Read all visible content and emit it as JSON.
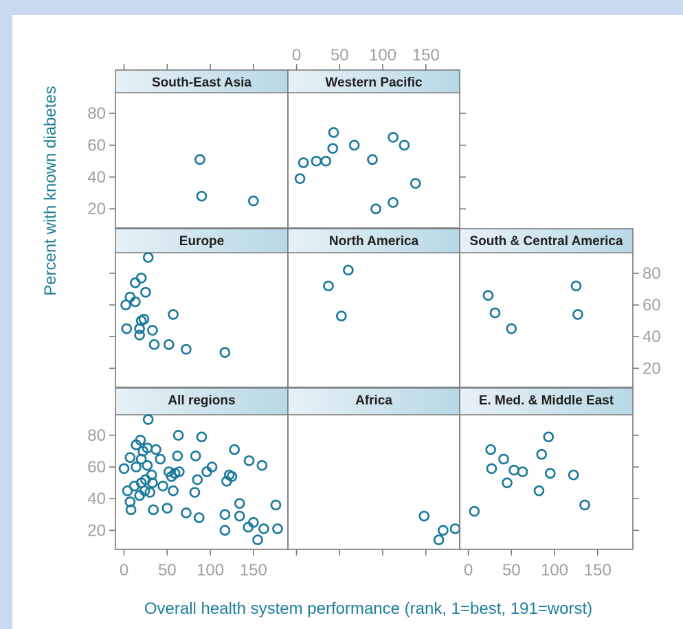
{
  "chart_data": {
    "type": "scatter",
    "xlabel": "Overall health system performance (rank, 1=best, 191=worst)",
    "ylabel": "Percent with known diabetes",
    "xlim": [
      -10,
      190
    ],
    "ylim": [
      8,
      93
    ],
    "xticks": [
      0,
      50,
      100,
      150
    ],
    "yticks": [
      20,
      40,
      60,
      80
    ],
    "panels": [
      {
        "title": "South-East Asia",
        "points": [
          [
            88,
            51
          ],
          [
            90,
            28
          ],
          [
            150,
            25
          ]
        ]
      },
      {
        "title": "Western Pacific",
        "points": [
          [
            4,
            39
          ],
          [
            8,
            49
          ],
          [
            23,
            50
          ],
          [
            34,
            50
          ],
          [
            42,
            58
          ],
          [
            43,
            68
          ],
          [
            67,
            60
          ],
          [
            88,
            51
          ],
          [
            92,
            20
          ],
          [
            112,
            24
          ],
          [
            112,
            65
          ],
          [
            125,
            60
          ],
          [
            138,
            36
          ]
        ]
      },
      {
        "title": "Europe",
        "points": [
          [
            2,
            60
          ],
          [
            3,
            45
          ],
          [
            7,
            65
          ],
          [
            13,
            62
          ],
          [
            13,
            74
          ],
          [
            18,
            45
          ],
          [
            18,
            41
          ],
          [
            20,
            50
          ],
          [
            20,
            77
          ],
          [
            23,
            51
          ],
          [
            25,
            68
          ],
          [
            28,
            90
          ],
          [
            33,
            44
          ],
          [
            35,
            35
          ],
          [
            52,
            35
          ],
          [
            57,
            54
          ],
          [
            72,
            32
          ],
          [
            117,
            30
          ]
        ]
      },
      {
        "title": "North America",
        "points": [
          [
            37,
            72
          ],
          [
            52,
            53
          ],
          [
            60,
            82
          ]
        ]
      },
      {
        "title": "South & Central America",
        "points": [
          [
            23,
            66
          ],
          [
            31,
            55
          ],
          [
            50,
            45
          ],
          [
            125,
            72
          ],
          [
            127,
            54
          ]
        ]
      },
      {
        "title": "All regions",
        "points": [
          [
            0,
            59
          ],
          [
            4,
            45
          ],
          [
            7,
            38
          ],
          [
            7,
            66
          ],
          [
            8,
            33
          ],
          [
            12,
            48
          ],
          [
            14,
            60
          ],
          [
            14,
            74
          ],
          [
            18,
            42
          ],
          [
            19,
            77
          ],
          [
            20,
            50
          ],
          [
            20,
            65
          ],
          [
            22,
            70
          ],
          [
            24,
            45
          ],
          [
            25,
            52
          ],
          [
            27,
            61
          ],
          [
            27,
            72
          ],
          [
            28,
            90
          ],
          [
            30,
            44
          ],
          [
            32,
            55
          ],
          [
            33,
            50
          ],
          [
            34,
            33
          ],
          [
            37,
            71
          ],
          [
            42,
            65
          ],
          [
            45,
            48
          ],
          [
            50,
            34
          ],
          [
            52,
            57
          ],
          [
            55,
            54
          ],
          [
            57,
            45
          ],
          [
            59,
            56
          ],
          [
            62,
            67
          ],
          [
            63,
            80
          ],
          [
            64,
            57
          ],
          [
            72,
            31
          ],
          [
            82,
            44
          ],
          [
            83,
            67
          ],
          [
            85,
            52
          ],
          [
            87,
            28
          ],
          [
            90,
            79
          ],
          [
            96,
            57
          ],
          [
            102,
            60
          ],
          [
            117,
            30
          ],
          [
            117,
            20
          ],
          [
            119,
            51
          ],
          [
            122,
            55
          ],
          [
            125,
            54
          ],
          [
            128,
            71
          ],
          [
            134,
            37
          ],
          [
            134,
            29
          ],
          [
            144,
            22
          ],
          [
            145,
            64
          ],
          [
            150,
            25
          ],
          [
            155,
            14
          ],
          [
            160,
            61
          ],
          [
            162,
            21
          ],
          [
            176,
            36
          ],
          [
            178,
            21
          ]
        ]
      },
      {
        "title": "Africa",
        "points": [
          [
            148,
            29
          ],
          [
            165,
            14
          ],
          [
            170,
            20
          ],
          [
            184,
            21
          ]
        ]
      },
      {
        "title": "E. Med. & Middle East",
        "points": [
          [
            7,
            32
          ],
          [
            26,
            71
          ],
          [
            27,
            59
          ],
          [
            41,
            65
          ],
          [
            45,
            50
          ],
          [
            53,
            58
          ],
          [
            63,
            57
          ],
          [
            82,
            45
          ],
          [
            85,
            68
          ],
          [
            93,
            79
          ],
          [
            95,
            56
          ],
          [
            122,
            55
          ],
          [
            135,
            36
          ]
        ]
      }
    ]
  }
}
